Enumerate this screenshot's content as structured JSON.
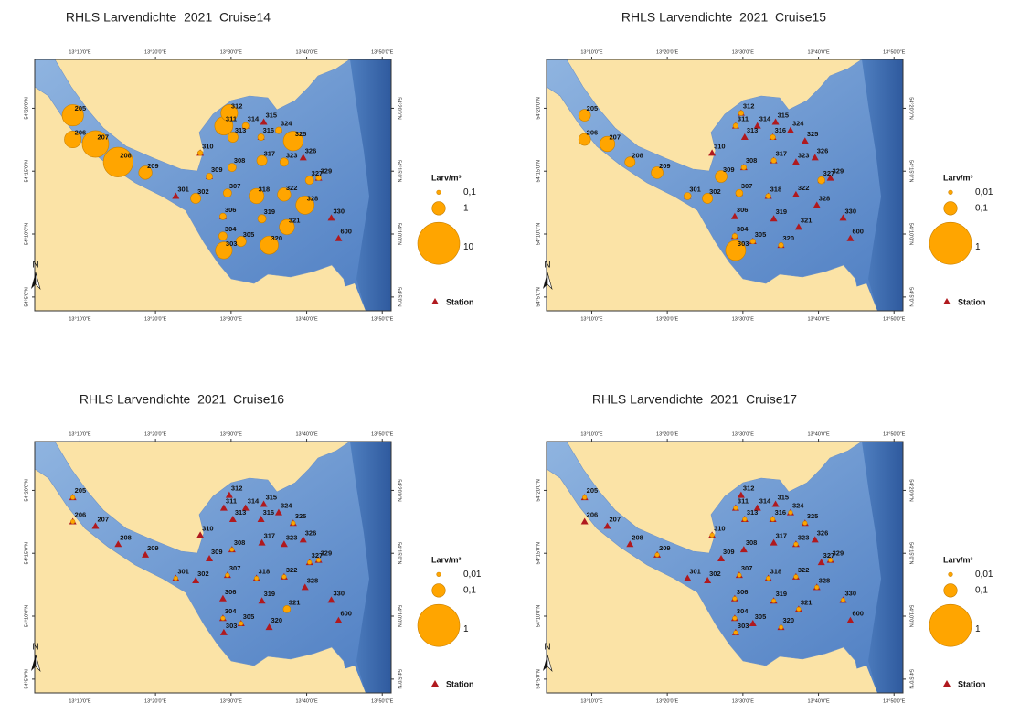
{
  "stations": [
    {
      "label": "205",
      "lon": 13.151,
      "lat": 54.324
    },
    {
      "label": "206",
      "lon": 13.151,
      "lat": 54.292
    },
    {
      "label": "207",
      "lon": 13.201,
      "lat": 54.286
    },
    {
      "label": "208",
      "lon": 13.251,
      "lat": 54.262
    },
    {
      "label": "209",
      "lon": 13.311,
      "lat": 54.248
    },
    {
      "label": "301",
      "lon": 13.378,
      "lat": 54.217
    },
    {
      "label": "302",
      "lon": 13.422,
      "lat": 54.214
    },
    {
      "label": "303",
      "lon": 13.484,
      "lat": 54.145
    },
    {
      "label": "304",
      "lon": 13.482,
      "lat": 54.164
    },
    {
      "label": "305",
      "lon": 13.522,
      "lat": 54.157
    },
    {
      "label": "306",
      "lon": 13.482,
      "lat": 54.19
    },
    {
      "label": "307",
      "lon": 13.492,
      "lat": 54.221
    },
    {
      "label": "308",
      "lon": 13.502,
      "lat": 54.255
    },
    {
      "label": "309",
      "lon": 13.452,
      "lat": 54.243
    },
    {
      "label": "310",
      "lon": 13.432,
      "lat": 54.274
    },
    {
      "label": "311",
      "lon": 13.484,
      "lat": 54.31
    },
    {
      "label": "312",
      "lon": 13.496,
      "lat": 54.327
    },
    {
      "label": "313",
      "lon": 13.504,
      "lat": 54.295
    },
    {
      "label": "314",
      "lon": 13.532,
      "lat": 54.31
    },
    {
      "label": "315",
      "lon": 13.572,
      "lat": 54.315
    },
    {
      "label": "316",
      "lon": 13.566,
      "lat": 54.295
    },
    {
      "label": "317",
      "lon": 13.568,
      "lat": 54.264
    },
    {
      "label": "318",
      "lon": 13.556,
      "lat": 54.217
    },
    {
      "label": "319",
      "lon": 13.568,
      "lat": 54.187
    },
    {
      "label": "320",
      "lon": 13.584,
      "lat": 54.152
    },
    {
      "label": "321",
      "lon": 13.623,
      "lat": 54.176
    },
    {
      "label": "322",
      "lon": 13.617,
      "lat": 54.219
    },
    {
      "label": "323",
      "lon": 13.617,
      "lat": 54.262
    },
    {
      "label": "324",
      "lon": 13.605,
      "lat": 54.304
    },
    {
      "label": "325",
      "lon": 13.637,
      "lat": 54.29
    },
    {
      "label": "326",
      "lon": 13.659,
      "lat": 54.268
    },
    {
      "label": "327",
      "lon": 13.673,
      "lat": 54.238
    },
    {
      "label": "328",
      "lon": 13.663,
      "lat": 54.205
    },
    {
      "label": "329",
      "lon": 13.693,
      "lat": 54.241
    },
    {
      "label": "330",
      "lon": 13.721,
      "lat": 54.188
    },
    {
      "label": "600",
      "lon": 13.737,
      "lat": 54.161
    }
  ],
  "map_axes": {
    "lonlim": [
      13.067,
      13.853
    ],
    "latlim": [
      54.065,
      54.398
    ],
    "lonticks": [
      {
        "value": 13.1667,
        "label": "13°10'0\"E"
      },
      {
        "value": 13.3333,
        "label": "13°20'0\"E"
      },
      {
        "value": 13.5,
        "label": "13°30'0\"E"
      },
      {
        "value": 13.6667,
        "label": "13°40'0\"E"
      },
      {
        "value": 13.8333,
        "label": "13°50'0\"E"
      }
    ],
    "latticks": [
      {
        "value": 54.3333,
        "label": "54°20'0\"N"
      },
      {
        "value": 54.25,
        "label": "54°15'0\"N"
      },
      {
        "value": 54.1667,
        "label": "54°10'0\"N"
      },
      {
        "value": 54.0833,
        "label": "54°5'0\"N"
      }
    ]
  },
  "north_label": "N",
  "maps": [
    {
      "title": "RHLS Larvendichte  2021  Cruise14",
      "legend_title": "Larv/m³",
      "legend": [
        {
          "value": 0.1,
          "label": "0,1"
        },
        {
          "value": 1,
          "label": "1"
        },
        {
          "value": 10,
          "label": "10"
        }
      ],
      "station_label": "Station",
      "densities": [
        2.6,
        1.6,
        4,
        5,
        1,
        0,
        0.6,
        1.6,
        0.4,
        0.6,
        0.25,
        0.4,
        0.4,
        0.25,
        0.15,
        1.9,
        1.6,
        0.6,
        0.25,
        0,
        0.25,
        0.6,
        1.3,
        0.4,
        1.9,
        1.3,
        1,
        0.4,
        0.25,
        2.2,
        0,
        0.4,
        1.9,
        0.15,
        0,
        0
      ]
    },
    {
      "title": "RHLS Larvendichte  2021  Cruise15",
      "legend_title": "Larv/m³",
      "legend": [
        {
          "value": 0.01,
          "label": "0,01"
        },
        {
          "value": 0.1,
          "label": "0,1"
        },
        {
          "value": 1,
          "label": "1"
        }
      ],
      "station_label": "Station",
      "densities": [
        0.08,
        0.08,
        0.13,
        0.06,
        0.08,
        0.03,
        0.06,
        0.23,
        0.015,
        0.015,
        0,
        0.03,
        0.015,
        0.08,
        0,
        0.015,
        0.015,
        0,
        0,
        0,
        0.015,
        0.015,
        0.015,
        0,
        0.015,
        0,
        0,
        0,
        0,
        0,
        0,
        0.03,
        0,
        0,
        0,
        0
      ]
    },
    {
      "title": "RHLS Larvendichte  2021  Cruise16",
      "legend_title": "Larv/m³",
      "legend": [
        {
          "value": 0.01,
          "label": "0,01"
        },
        {
          "value": 0.1,
          "label": "0,1"
        },
        {
          "value": 1,
          "label": "1"
        }
      ],
      "station_label": "Station",
      "densities": [
        0.01,
        0.01,
        0,
        0,
        0,
        0.01,
        0,
        0,
        0.01,
        0.01,
        0,
        0.01,
        0.01,
        0,
        0,
        0,
        0,
        0,
        0,
        0,
        0,
        0,
        0.01,
        0,
        0,
        0.03,
        0.01,
        0,
        0,
        0.01,
        0,
        0.01,
        0,
        0.01,
        0,
        0
      ]
    },
    {
      "title": "RHLS Larvendichte  2021  Cruise17",
      "legend_title": "Larv/m³",
      "legend": [
        {
          "value": 0.01,
          "label": "0,01"
        },
        {
          "value": 0.1,
          "label": "0,1"
        },
        {
          "value": 1,
          "label": "1"
        }
      ],
      "station_label": "Station",
      "densities": [
        0.01,
        0,
        0,
        0,
        0.01,
        0,
        0,
        0.01,
        0.01,
        0,
        0.01,
        0.01,
        0,
        0,
        0.01,
        0.01,
        0,
        0.01,
        0,
        0,
        0.01,
        0,
        0.01,
        0.01,
        0.01,
        0.01,
        0.01,
        0.01,
        0.01,
        0.01,
        0,
        0,
        0.01,
        0.01,
        0.01,
        0
      ]
    }
  ]
}
